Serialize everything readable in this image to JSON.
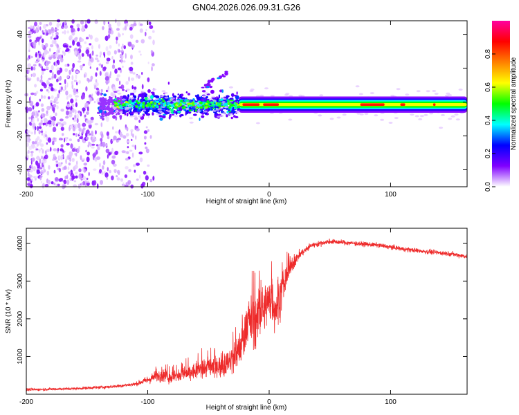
{
  "chart_data": [
    {
      "type": "heatmap",
      "title": "GN04.2026.026.09.31.G26",
      "xlabel": "Height of straight line (km)",
      "ylabel": "Frequency (Hz)",
      "xlim": [
        -200,
        163
      ],
      "ylim": [
        -50,
        48
      ],
      "x_ticks": [
        -200,
        -100,
        0,
        100
      ],
      "x_tick_labels": [
        "-200",
        "-100",
        "0",
        "100"
      ],
      "y_ticks": [
        -40,
        -20,
        0,
        20,
        40
      ],
      "y_tick_labels": [
        "-40",
        "-20",
        "0",
        "20",
        "40"
      ],
      "description_of_structure": {
        "scattered_region_x": [
          -200,
          -95
        ],
        "strong_band_start_x": -25,
        "band_center_hz": -1.5,
        "band_halfwidth_hz": 3
      },
      "colorbar": {
        "label": "Normalized spectral amplitude",
        "range": [
          0,
          1
        ],
        "ticks": [
          0.0,
          0.2,
          0.4,
          0.6,
          0.8
        ],
        "tick_labels": [
          "0.0",
          "0.2",
          "0.4",
          "0.6",
          "0.8"
        ],
        "colormap_stops": [
          "#ffffff",
          "#8000ff",
          "#0000ff",
          "#00ffff",
          "#00ff00",
          "#ffff00",
          "#ff8000",
          "#ff0000",
          "#ff00a0"
        ]
      }
    },
    {
      "type": "line",
      "title": "",
      "xlabel": "Height of straight line (km)",
      "ylabel": "SNR (10 * v/v)",
      "xlim": [
        -200,
        163
      ],
      "ylim": [
        0,
        4400
      ],
      "x_ticks": [
        -200,
        -100,
        0,
        100
      ],
      "x_tick_labels": [
        "-200",
        "-100",
        "0",
        "100"
      ],
      "y_ticks": [
        1000,
        2000,
        3000,
        4000
      ],
      "y_tick_labels": [
        "1000",
        "2000",
        "3000",
        "4000"
      ],
      "series": [
        {
          "name": "SNR",
          "color": "#ee2a2a",
          "envelope_x": [
            -200,
            -160,
            -130,
            -110,
            -100,
            -90,
            -80,
            -70,
            -60,
            -50,
            -40,
            -30,
            -22,
            -18,
            -12,
            -6,
            0,
            6,
            12,
            18,
            25,
            35,
            50,
            70,
            90,
            110,
            130,
            150,
            163
          ],
          "envelope_mean": [
            120,
            150,
            200,
            270,
            380,
            520,
            450,
            520,
            620,
            720,
            760,
            900,
            1400,
            2000,
            1900,
            2200,
            2500,
            2300,
            2900,
            3400,
            3700,
            3950,
            4050,
            4000,
            3950,
            3850,
            3780,
            3720,
            3650
          ],
          "envelope_noise": [
            60,
            60,
            70,
            80,
            180,
            300,
            280,
            300,
            380,
            420,
            420,
            600,
            900,
            1000,
            1100,
            1000,
            1000,
            1100,
            700,
            400,
            180,
            120,
            110,
            100,
            100,
            100,
            100,
            100,
            100
          ]
        }
      ]
    }
  ]
}
